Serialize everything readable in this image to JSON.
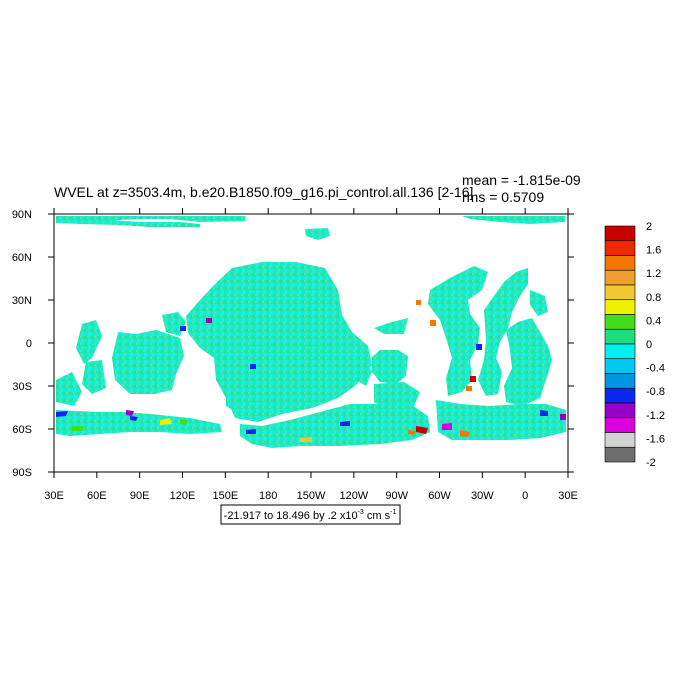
{
  "chart_data": {
    "type": "heatmap",
    "title": "WVEL at z=3503.4m, b.e20.B1850.f09_g16.pi_control.all.136 [2-16]",
    "stats": {
      "mean": "mean = -1.815e-09",
      "rms": "rms = 0.5709"
    },
    "x_tick_labels": [
      "30E",
      "60E",
      "90E",
      "120E",
      "150E",
      "180",
      "150W",
      "120W",
      "90W",
      "60W",
      "30W",
      "0",
      "30E"
    ],
    "y_tick_labels": [
      "90N",
      "60N",
      "30N",
      "0",
      "30S",
      "60S",
      "90S"
    ],
    "xlim": [
      30,
      390
    ],
    "ylim": [
      -90,
      90
    ],
    "range_label": {
      "prefix": "-21.917 to 18.496 by .2 x10",
      "exponent": "-3",
      "units": " cm s",
      "units_exponent": "-1"
    },
    "colorbar": {
      "labels": [
        "2",
        "1.6",
        "1.2",
        "0.8",
        "0.4",
        "0",
        "-0.4",
        "-0.8",
        "-1.2",
        "-1.6",
        "-2"
      ],
      "colors": [
        "#c80000",
        "#f02800",
        "#f07800",
        "#f0a030",
        "#f0c832",
        "#f0f000",
        "#46dc1e",
        "#1edc78",
        "#00f0f0",
        "#00c8f0",
        "#0096e6",
        "#0a28f0",
        "#9600c8",
        "#dc00dc",
        "#d2d2d2",
        "#6e6e6e"
      ]
    }
  }
}
